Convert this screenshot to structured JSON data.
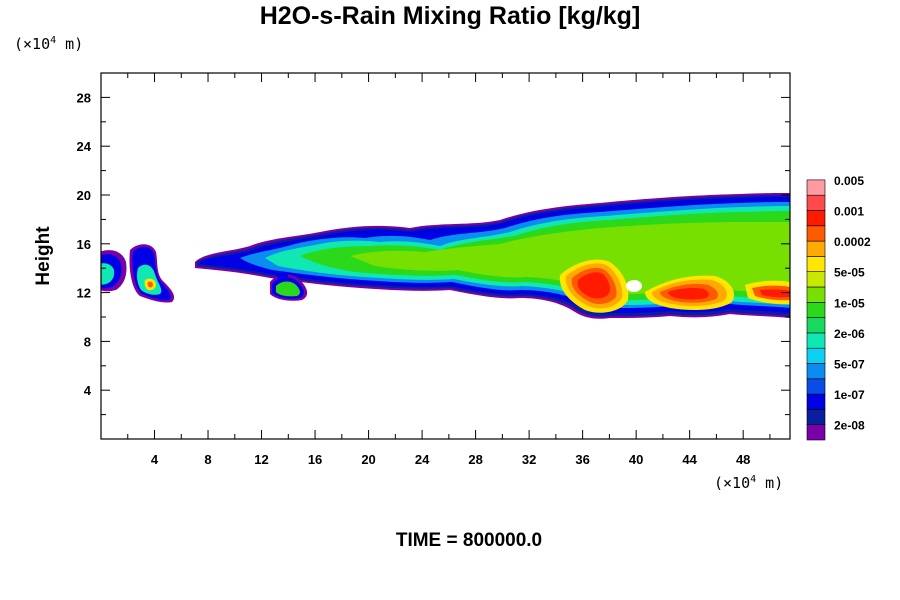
{
  "title": "H2O-s-Rain Mixing Ratio [kg/kg]",
  "time_label": "TIME = 800000.0",
  "chart_data": {
    "type": "heatmap",
    "title": "H2O-s-Rain Mixing Ratio [kg/kg]",
    "ylabel": "Height",
    "x_unit": "(×10⁴ m)",
    "y_unit": "(×10⁴ m)",
    "x_unit_base": "(×10",
    "x_unit_exp": "4",
    "x_unit_tail": " m)",
    "xlim": [
      0,
      51.5
    ],
    "ylim": [
      0,
      30
    ],
    "x_ticks": [
      "4",
      "8",
      "12",
      "16",
      "20",
      "24",
      "28",
      "32",
      "36",
      "40",
      "44",
      "48"
    ],
    "y_ticks": [
      "4",
      "8",
      "12",
      "16",
      "20",
      "24",
      "28"
    ],
    "x_tick_values": [
      4,
      8,
      12,
      16,
      20,
      24,
      28,
      32,
      36,
      40,
      44,
      48
    ],
    "y_tick_values": [
      4,
      8,
      12,
      16,
      20,
      24,
      28
    ],
    "colorbar": {
      "colors": [
        "#7a00a8",
        "#0a1fa0",
        "#0000e6",
        "#0a4ce8",
        "#0a8cf0",
        "#0ad2f0",
        "#10e8b4",
        "#18d860",
        "#2cd81a",
        "#78e000",
        "#c8e800",
        "#ffe600",
        "#ffaa00",
        "#ff5a00",
        "#ff1a00",
        "#ff4a4a",
        "#ff9aa0"
      ],
      "labels": [
        "2e-08",
        "1e-07",
        "5e-07",
        "2e-06",
        "1e-05",
        "5e-05",
        "0.0002",
        "0.001",
        "0.005"
      ]
    },
    "features": [
      {
        "name": "main-cloud-band",
        "x_range": [
          6.5,
          51.5
        ],
        "y_range": [
          10,
          20
        ],
        "max_level": "0.005"
      },
      {
        "name": "left-edge-cell",
        "x_range": [
          0,
          2
        ],
        "y_range": [
          12,
          15.5
        ],
        "max_level": "1e-05"
      },
      {
        "name": "cell-near-x4",
        "x_range": [
          2.5,
          5.5
        ],
        "y_range": [
          11.5,
          16
        ],
        "max_level": "0.0002"
      },
      {
        "name": "cell-near-x14",
        "x_range": [
          12.5,
          15.5
        ],
        "y_range": [
          12,
          13.5
        ],
        "max_level": "5e-05"
      }
    ]
  }
}
